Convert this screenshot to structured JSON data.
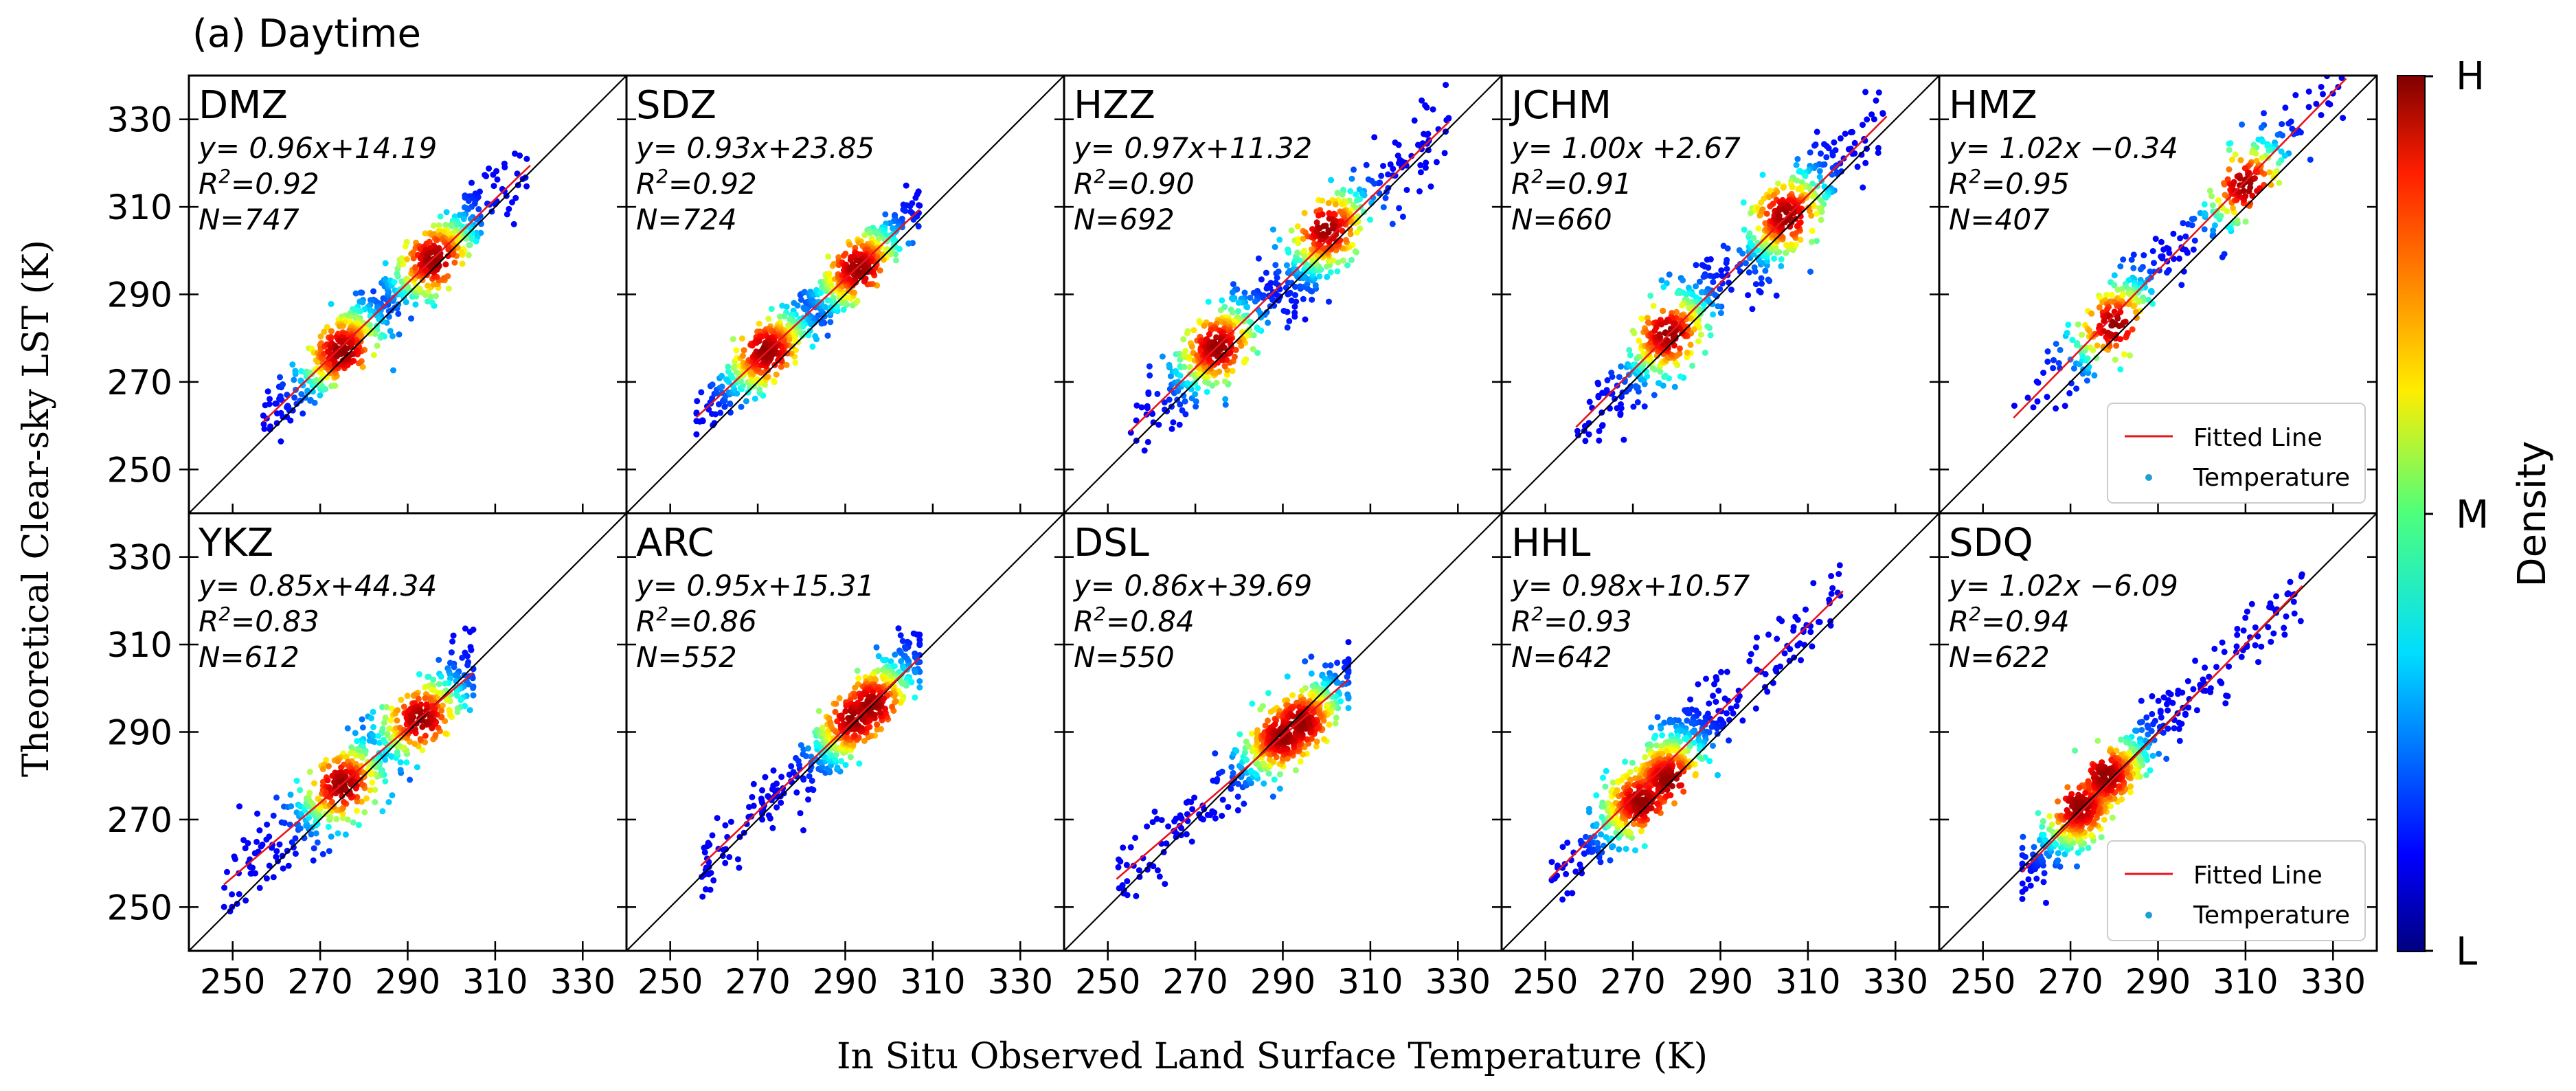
{
  "figure": {
    "title": "(a) Daytime",
    "xlabel": "In Situ Observed Land Surface Temperature (K)",
    "ylabel": "Theoretical Clear-sky LST (K)"
  },
  "colorbar": {
    "label": "Density",
    "ticks": [
      "H",
      "M",
      "L"
    ],
    "colormap": "jet"
  },
  "legend": {
    "entries": [
      "Fitted Line",
      "Temperature"
    ],
    "line_color": "#e8141d"
  },
  "chart_data": {
    "type": "scatter",
    "x_range": [
      240,
      340
    ],
    "y_range": [
      240,
      340
    ],
    "x_ticks": [
      250,
      270,
      290,
      310,
      330
    ],
    "y_ticks": [
      250,
      270,
      290,
      310,
      330
    ],
    "reference_line": "1:1",
    "panels": [
      {
        "site": "DMZ",
        "equation": "y= 0.96x+14.19",
        "r2": "0.92",
        "n": "747",
        "slope": 0.96,
        "intercept": 14.19,
        "x_min": 257,
        "x_max": 318,
        "cluster": [
          [
            275,
            277
          ],
          [
            296,
            298
          ]
        ],
        "spread": 4.0
      },
      {
        "site": "SDZ",
        "equation": "y= 0.93x+23.85",
        "r2": "0.92",
        "n": "724",
        "slope": 0.93,
        "intercept": 23.85,
        "x_min": 256,
        "x_max": 307,
        "cluster": [
          [
            272,
            277
          ],
          [
            293,
            296
          ]
        ],
        "spread": 3.5
      },
      {
        "site": "HZZ",
        "equation": "y= 0.97x+11.32",
        "r2": "0.90",
        "n": "692",
        "slope": 0.97,
        "intercept": 11.32,
        "x_min": 255,
        "x_max": 328,
        "cluster": [
          [
            275,
            278
          ],
          [
            300,
            305
          ]
        ],
        "spread": 5.0
      },
      {
        "site": "JCHM",
        "equation": "y= 1.00x +2.67",
        "r2": "0.91",
        "n": "660",
        "slope": 1.0,
        "intercept": 2.67,
        "x_min": 257,
        "x_max": 328,
        "cluster": [
          [
            278,
            281
          ],
          [
            305,
            308
          ]
        ],
        "spread": 5.0
      },
      {
        "site": "HMZ",
        "equation": "y= 1.02x −0.34",
        "r2": "0.95",
        "n": "407",
        "slope": 1.02,
        "intercept": -0.34,
        "x_min": 257,
        "x_max": 333,
        "cluster": [
          [
            280,
            283
          ],
          [
            310,
            315
          ]
        ],
        "spread": 4.5
      },
      {
        "site": "YKZ",
        "equation": "y= 0.85x+44.34",
        "r2": "0.83",
        "n": "612",
        "slope": 0.85,
        "intercept": 44.34,
        "x_min": 248,
        "x_max": 305,
        "cluster": [
          [
            275,
            278
          ],
          [
            293,
            293
          ]
        ],
        "spread": 4.5
      },
      {
        "site": "ARC",
        "equation": "y= 0.95x+15.31",
        "r2": "0.86",
        "n": "552",
        "slope": 0.95,
        "intercept": 15.31,
        "x_min": 257,
        "x_max": 307,
        "cluster": [
          [
            292,
            293
          ],
          [
            296,
            296
          ]
        ],
        "spread": 4.0
      },
      {
        "site": "DSL",
        "equation": "y= 0.86x+39.69",
        "r2": "0.84",
        "n": "550",
        "slope": 0.86,
        "intercept": 39.69,
        "x_min": 252,
        "x_max": 305,
        "cluster": [
          [
            290,
            289
          ],
          [
            294,
            292
          ]
        ],
        "spread": 4.0
      },
      {
        "site": "HHL",
        "equation": "y= 0.98x+10.57",
        "r2": "0.93",
        "n": "642",
        "slope": 0.98,
        "intercept": 10.57,
        "x_min": 251,
        "x_max": 318,
        "cluster": [
          [
            272,
            274
          ],
          [
            278,
            279
          ]
        ],
        "spread": 4.5
      },
      {
        "site": "SDQ",
        "equation": "y= 1.02x −6.09",
        "r2": "0.94",
        "n": "622",
        "slope": 1.02,
        "intercept": -6.09,
        "x_min": 259,
        "x_max": 323,
        "cluster": [
          [
            272,
            273
          ],
          [
            278,
            280
          ]
        ],
        "spread": 4.0
      }
    ]
  }
}
